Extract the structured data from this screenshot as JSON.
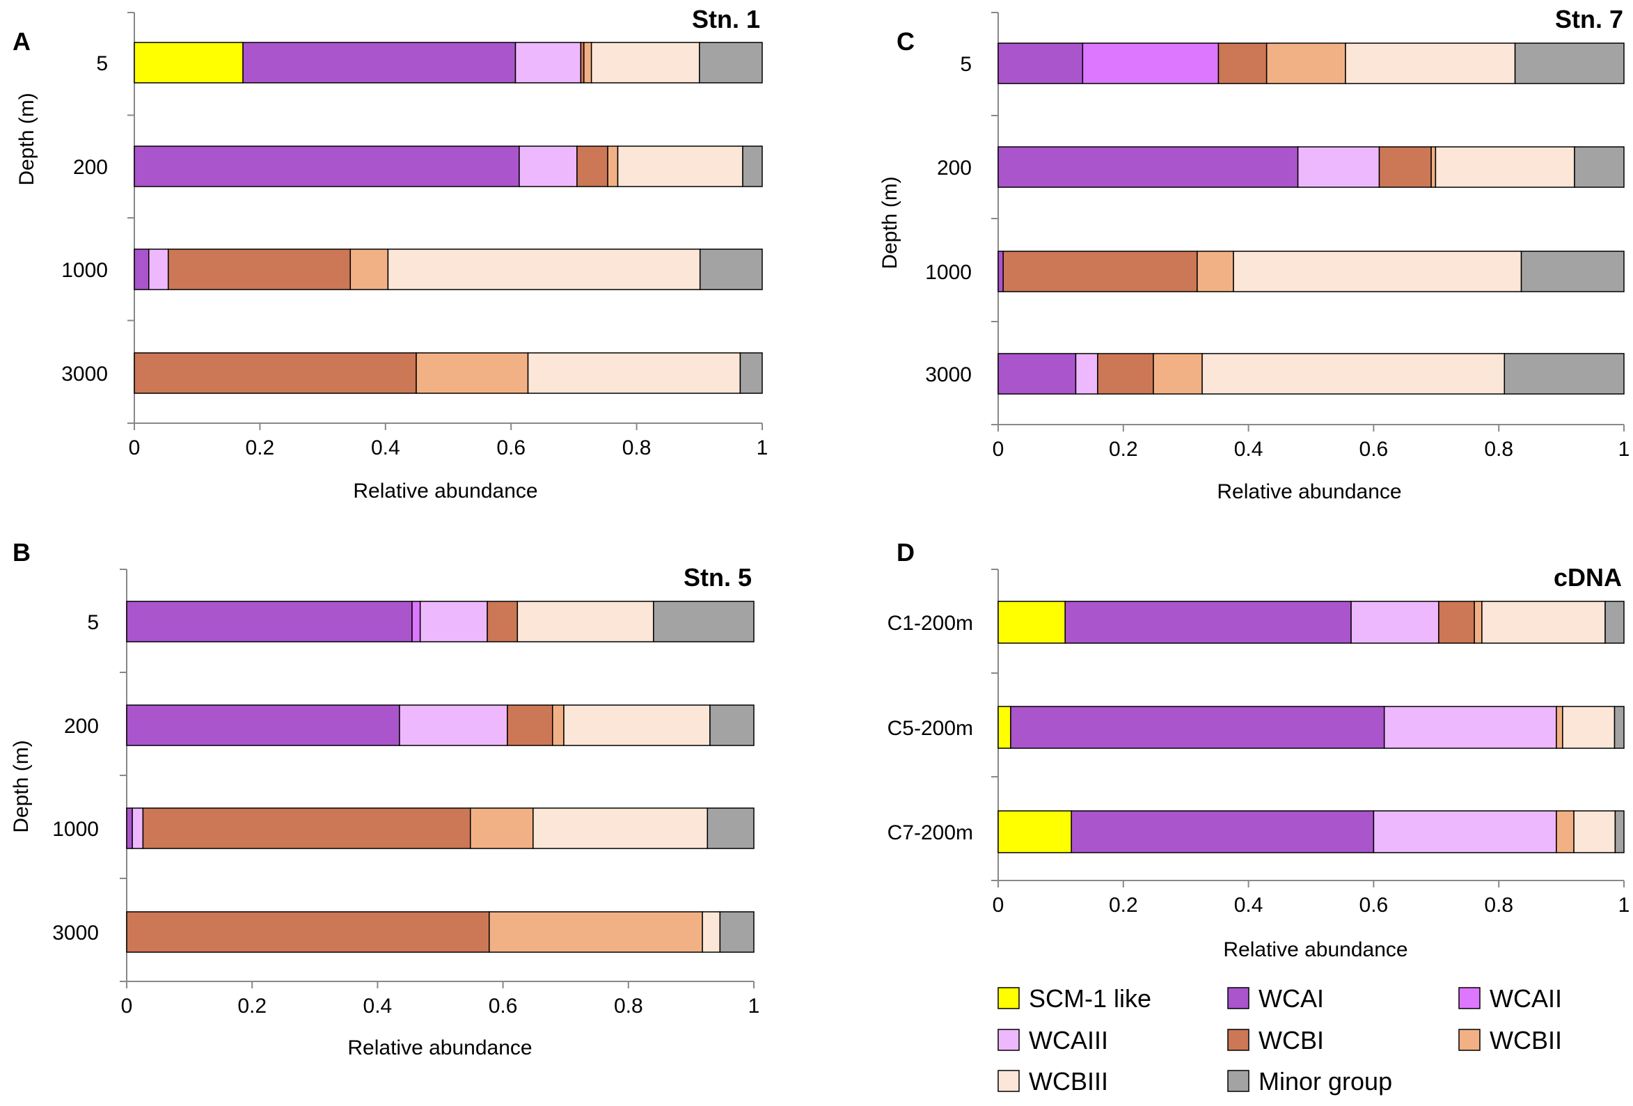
{
  "series_colors": {
    "SCM-1 like": "#FFFF00",
    "WCAI": "#AA55CC",
    "WCAII": "#DD77FF",
    "WCAIII": "#EEB8FF",
    "WCBI": "#CC7755",
    "WCBII": "#F2B184",
    "WCBIII": "#FCE6D8",
    "Minor group": "#A3A3A3"
  },
  "legend": {
    "items": [
      "SCM-1 like",
      "WCAI",
      "WCAII",
      "WCAIII",
      "WCBI",
      "WCBII",
      "WCBIII",
      "Minor group"
    ]
  },
  "chart_data": [
    {
      "panel": "A",
      "type": "bar",
      "orientation": "horizontal",
      "stacked": true,
      "title": "Stn. 1",
      "xlabel": "Relative abundance",
      "ylabel": "Depth (m)",
      "xlim": [
        0,
        1
      ],
      "xticks": [
        "0",
        "0.2",
        "0.4",
        "0.6",
        "0.8",
        "1"
      ],
      "categories": [
        "5",
        "200",
        "1000",
        "3000"
      ],
      "series": [
        {
          "name": "SCM-1 like",
          "values": [
            0.173,
            0.0,
            0.0,
            0.0
          ]
        },
        {
          "name": "WCAI",
          "values": [
            0.434,
            0.613,
            0.023,
            0.0
          ]
        },
        {
          "name": "WCAII",
          "values": [
            0.0,
            0.0,
            0.0,
            0.0
          ]
        },
        {
          "name": "WCAIII",
          "values": [
            0.104,
            0.092,
            0.031,
            0.0
          ]
        },
        {
          "name": "WCBI",
          "values": [
            0.005,
            0.049,
            0.29,
            0.449
          ]
        },
        {
          "name": "WCBII",
          "values": [
            0.012,
            0.016,
            0.06,
            0.178
          ]
        },
        {
          "name": "WCBIII",
          "values": [
            0.172,
            0.199,
            0.497,
            0.338
          ]
        },
        {
          "name": "Minor group",
          "values": [
            0.1,
            0.031,
            0.099,
            0.035
          ]
        }
      ]
    },
    {
      "panel": "B",
      "type": "bar",
      "orientation": "horizontal",
      "stacked": true,
      "title": "Stn. 5",
      "xlabel": "Relative abundance",
      "ylabel": "Depth (m)",
      "xlim": [
        0,
        1
      ],
      "xticks": [
        "0",
        "0.2",
        "0.4",
        "0.6",
        "0.8",
        "1"
      ],
      "categories": [
        "5",
        "200",
        "1000",
        "3000"
      ],
      "series": [
        {
          "name": "SCM-1 like",
          "values": [
            0.0,
            0.0,
            0.0,
            0.0
          ]
        },
        {
          "name": "WCAI",
          "values": [
            0.455,
            0.435,
            0.009,
            0.0
          ]
        },
        {
          "name": "WCAII",
          "values": [
            0.013,
            0.0,
            0.0,
            0.0
          ]
        },
        {
          "name": "WCAIII",
          "values": [
            0.107,
            0.172,
            0.017,
            0.0
          ]
        },
        {
          "name": "WCBI",
          "values": [
            0.048,
            0.072,
            0.522,
            0.578
          ]
        },
        {
          "name": "WCBII",
          "values": [
            0.0,
            0.018,
            0.1,
            0.34
          ]
        },
        {
          "name": "WCBIII",
          "values": [
            0.217,
            0.233,
            0.278,
            0.028
          ]
        },
        {
          "name": "Minor group",
          "values": [
            0.16,
            0.07,
            0.074,
            0.054
          ]
        }
      ]
    },
    {
      "panel": "C",
      "type": "bar",
      "orientation": "horizontal",
      "stacked": true,
      "title": "Stn. 7",
      "xlabel": "Relative abundance",
      "ylabel": "Depth (m)",
      "xlim": [
        0,
        1
      ],
      "xticks": [
        "0",
        "0.2",
        "0.4",
        "0.6",
        "0.8",
        "1"
      ],
      "categories": [
        "5",
        "200",
        "1000",
        "3000"
      ],
      "series": [
        {
          "name": "SCM-1 like",
          "values": [
            0.0,
            0.0,
            0.0,
            0.0
          ]
        },
        {
          "name": "WCAI",
          "values": [
            0.135,
            0.479,
            0.008,
            0.124
          ]
        },
        {
          "name": "WCAII",
          "values": [
            0.217,
            0.0,
            0.0,
            0.0
          ]
        },
        {
          "name": "WCAIII",
          "values": [
            0.0,
            0.13,
            0.0,
            0.035
          ]
        },
        {
          "name": "WCBI",
          "values": [
            0.077,
            0.083,
            0.31,
            0.089
          ]
        },
        {
          "name": "WCBII",
          "values": [
            0.126,
            0.007,
            0.058,
            0.078
          ]
        },
        {
          "name": "WCBIII",
          "values": [
            0.271,
            0.222,
            0.46,
            0.483
          ]
        },
        {
          "name": "Minor group",
          "values": [
            0.174,
            0.079,
            0.164,
            0.191
          ]
        }
      ]
    },
    {
      "panel": "D",
      "type": "bar",
      "orientation": "horizontal",
      "stacked": true,
      "title": "cDNA",
      "xlabel": "Relative abundance",
      "ylabel": "",
      "xlim": [
        0,
        1
      ],
      "xticks": [
        "0",
        "0.2",
        "0.4",
        "0.6",
        "0.8",
        "1"
      ],
      "categories": [
        "C1-200m",
        "C5-200m",
        "C7-200m"
      ],
      "series": [
        {
          "name": "SCM-1 like",
          "values": [
            0.107,
            0.02,
            0.117
          ]
        },
        {
          "name": "WCAI",
          "values": [
            0.457,
            0.597,
            0.483
          ]
        },
        {
          "name": "WCAII",
          "values": [
            0.0,
            0.0,
            0.0
          ]
        },
        {
          "name": "WCAIII",
          "values": [
            0.14,
            0.275,
            0.292
          ]
        },
        {
          "name": "WCBI",
          "values": [
            0.057,
            0.0,
            0.0
          ]
        },
        {
          "name": "WCBII",
          "values": [
            0.012,
            0.01,
            0.028
          ]
        },
        {
          "name": "WCBIII",
          "values": [
            0.197,
            0.083,
            0.066
          ]
        },
        {
          "name": "Minor group",
          "values": [
            0.03,
            0.015,
            0.014
          ]
        }
      ]
    }
  ]
}
